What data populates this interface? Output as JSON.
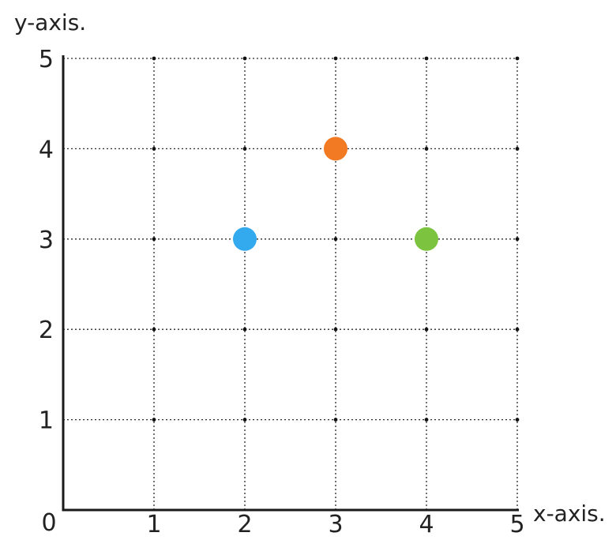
{
  "chart_data": {
    "type": "scatter",
    "title": "",
    "xlabel": "x-axis.",
    "ylabel": "y-axis.",
    "origin_label": "0",
    "xlim": [
      0,
      5
    ],
    "ylim": [
      0,
      5
    ],
    "x_ticks": [
      "1",
      "2",
      "3",
      "4",
      "5"
    ],
    "y_ticks": [
      "1",
      "2",
      "3",
      "4",
      "5"
    ],
    "grid": true,
    "grid_style": "dotted",
    "points": [
      {
        "x": 2,
        "y": 3,
        "color": "#33aaee"
      },
      {
        "x": 3,
        "y": 4,
        "color": "#f27a22"
      },
      {
        "x": 4,
        "y": 3,
        "color": "#7cc43f"
      }
    ]
  }
}
